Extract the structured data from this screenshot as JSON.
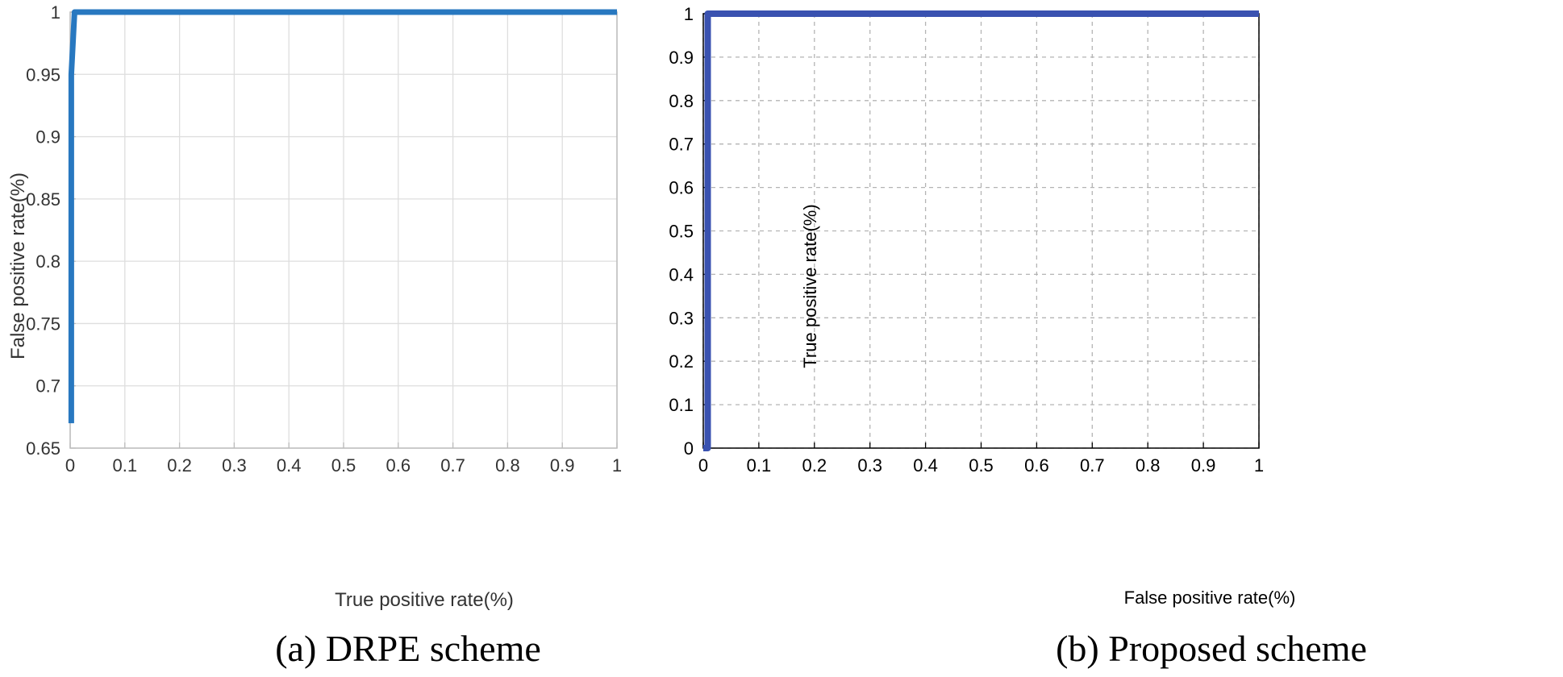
{
  "chart_data": [
    {
      "type": "line",
      "caption": "(a) DRPE scheme",
      "xlabel": "True positive rate(%)",
      "ylabel": "False positive rate(%)",
      "xlim": [
        0,
        1
      ],
      "ylim": [
        0.65,
        1
      ],
      "xticks": [
        "0",
        "0.1",
        "0.2",
        "0.3",
        "0.4",
        "0.5",
        "0.6",
        "0.7",
        "0.8",
        "0.9",
        "1"
      ],
      "yticks": [
        "0.65",
        "0.7",
        "0.75",
        "0.8",
        "0.85",
        "0.9",
        "0.95",
        "1"
      ],
      "grid": "solid",
      "series": [
        {
          "color": "#2878c0",
          "x": [
            0.002,
            0.002,
            0.008,
            1.0
          ],
          "y": [
            0.67,
            0.95,
            1.0,
            1.0
          ]
        }
      ]
    },
    {
      "type": "line",
      "caption": "(b)  Proposed  scheme",
      "xlabel": "False positive rate(%)",
      "ylabel": "True positive rate(%)",
      "xlim": [
        0,
        1
      ],
      "ylim": [
        0,
        1
      ],
      "xticks": [
        "0",
        "0.1",
        "0.2",
        "0.3",
        "0.4",
        "0.5",
        "0.6",
        "0.7",
        "0.8",
        "0.9",
        "1"
      ],
      "yticks": [
        "0",
        "0.1",
        "0.2",
        "0.3",
        "0.4",
        "0.5",
        "0.6",
        "0.7",
        "0.8",
        "0.9",
        "1"
      ],
      "grid": "dashed",
      "series": [
        {
          "color": "#3a52b0",
          "x": [
            0.0,
            0.008,
            0.008,
            1.0
          ],
          "y": [
            0.0,
            0.0,
            1.0,
            1.0
          ]
        }
      ]
    }
  ]
}
